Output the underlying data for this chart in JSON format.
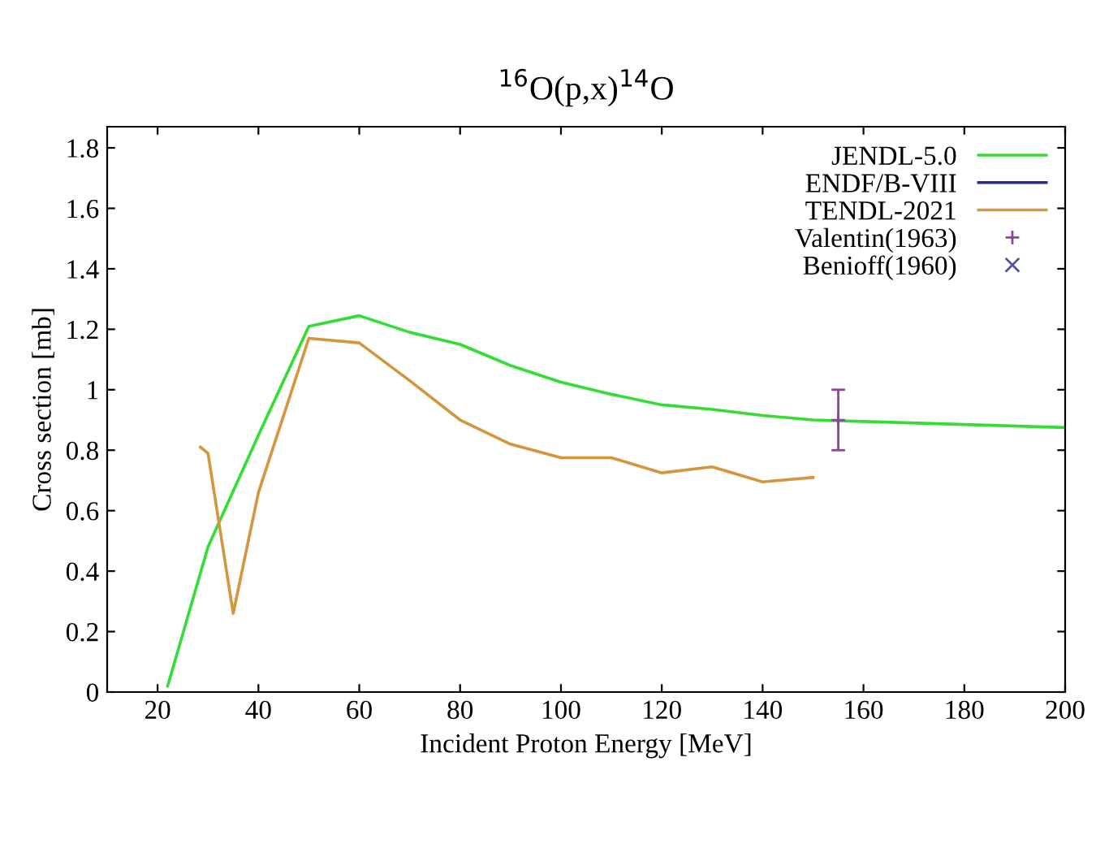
{
  "chart_data": {
    "type": "line",
    "title": "$^{16}$O(p,x)$^{14}$O",
    "xlabel": "Incident Proton Energy [MeV]",
    "ylabel": "Cross section [mb]",
    "xlim": [
      10,
      200
    ],
    "xticks": [
      20,
      40,
      60,
      80,
      100,
      120,
      140,
      160,
      180,
      200
    ],
    "ylim": [
      0,
      1.87
    ],
    "yticks": [
      0,
      0.2,
      0.4,
      0.6,
      0.8,
      1,
      1.2,
      1.4,
      1.6,
      1.8
    ],
    "grid": false,
    "legend": "top right",
    "marker": "none",
    "line_style": "solid",
    "series": [
      {
        "name": "JENDL-5.0",
        "color": "#33dd33",
        "x": [
          22,
          30,
          40,
          50,
          60,
          70,
          80,
          90,
          100,
          110,
          120,
          130,
          140,
          150,
          160,
          180,
          200
        ],
        "values": [
          0.02,
          0.48,
          0.85,
          1.21,
          1.245,
          1.19,
          1.15,
          1.08,
          1.025,
          0.985,
          0.95,
          0.935,
          0.915,
          0.9,
          0.895,
          0.885,
          0.875
        ]
      },
      {
        "name": "ENDF/B-VIII",
        "color": "#2a2a8c"
      },
      {
        "name": "TENDL-2021",
        "color": "#d4963c",
        "x": [
          28.5,
          30,
          35,
          40,
          50,
          60,
          70,
          80,
          90,
          100,
          110,
          120,
          130,
          140,
          150
        ],
        "values": [
          0.81,
          0.79,
          0.26,
          0.66,
          1.17,
          1.155,
          1.03,
          0.9,
          0.82,
          0.775,
          0.775,
          0.725,
          0.745,
          0.695,
          0.71
        ]
      },
      {
        "name": "Valentin(1963)",
        "type": "scatter",
        "marker": "plus",
        "color": "#9040a0",
        "x": [
          155
        ],
        "values": [
          0.9
        ],
        "errors": [
          0.1
        ]
      },
      {
        "name": "Benioff(1960)",
        "type": "scatter",
        "marker": "cross",
        "color": "#5050a0"
      }
    ]
  }
}
